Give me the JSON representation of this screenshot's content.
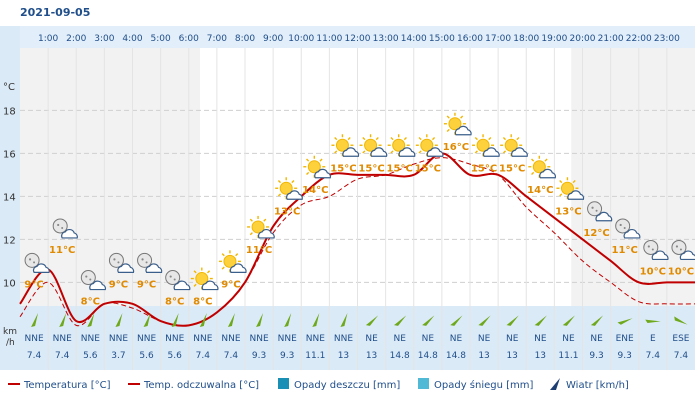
{
  "date": "2021-09-05",
  "wind_unit": [
    "km",
    "/h"
  ],
  "chart_data": {
    "type": "line",
    "x": [
      "1:00",
      "2:00",
      "3:00",
      "4:00",
      "5:00",
      "6:00",
      "7:00",
      "8:00",
      "9:00",
      "10:00",
      "11:00",
      "12:00",
      "13:00",
      "14:00",
      "15:00",
      "16:00",
      "17:00",
      "18:00",
      "19:00",
      "20:00",
      "21:00",
      "22:00",
      "23:00"
    ],
    "y_unit": "°C",
    "y_ticks": [
      10,
      12,
      14,
      16,
      18
    ],
    "ylim": [
      8.9,
      20.9
    ],
    "grid": true,
    "series": [
      {
        "name": "Temperatura [°C]",
        "style": "solid",
        "color": "#c00000",
        "values": [
          10.6,
          8.2,
          9.0,
          9.0,
          8.2,
          8.0,
          8.6,
          10.0,
          12.6,
          14.0,
          15.0,
          15.0,
          15.0,
          15.0,
          16.0,
          15.0,
          15.0,
          14.0,
          13.0,
          12.0,
          11.0,
          10.0,
          10.0
        ]
      },
      {
        "name": "Temp. odczuwalna [°C]",
        "style": "dashed",
        "color": "#c00000",
        "values": [
          10.0,
          8.0,
          9.0,
          8.8,
          8.2,
          8.0,
          8.6,
          10.0,
          12.3,
          13.6,
          14.0,
          14.8,
          15.0,
          15.5,
          15.8,
          15.5,
          15.0,
          13.5,
          12.3,
          11.0,
          10.0,
          9.1,
          9.0
        ]
      }
    ],
    "temp_labels": [
      "9°C",
      "11°C",
      "8°C",
      "9°C",
      "9°C",
      "8°C",
      "8°C",
      "9°C",
      "11°C",
      "13°C",
      "14°C",
      "15°C",
      "15°C",
      "15°C",
      "15°C",
      "16°C",
      "15°C",
      "15°C",
      "14°C",
      "13°C",
      "12°C",
      "11°C",
      "10°C",
      "10°C"
    ],
    "label_values": [
      10,
      11.6,
      9.2,
      10,
      10,
      9.2,
      9.2,
      10,
      11.6,
      13.4,
      14.4,
      15.4,
      15.4,
      15.4,
      15.4,
      16.4,
      15.4,
      15.4,
      14.4,
      13.4,
      12.4,
      11.6,
      10.6,
      10.6
    ],
    "weather_icons": [
      "night-partly-cloudy-icon",
      "night-partly-cloudy-icon",
      "night-partly-cloudy-icon",
      "night-partly-cloudy-icon",
      "night-partly-cloudy-icon",
      "night-partly-cloudy-icon",
      "partly-sunny-icon",
      "partly-sunny-icon",
      "partly-sunny-icon",
      "partly-sunny-icon",
      "partly-sunny-icon",
      "partly-sunny-icon",
      "partly-sunny-icon",
      "partly-sunny-icon",
      "partly-sunny-icon",
      "partly-sunny-icon",
      "partly-sunny-icon",
      "partly-sunny-icon",
      "partly-sunny-icon",
      "partly-sunny-icon",
      "night-partly-cloudy-icon",
      "night-partly-cloudy-icon",
      "night-partly-cloudy-icon",
      "night-partly-cloudy-icon"
    ],
    "wind_dirs": [
      "NNE",
      "NNE",
      "NNE",
      "NNE",
      "NNE",
      "NNE",
      "NNE",
      "NNE",
      "NNE",
      "NNE",
      "NNE",
      "NNE",
      "NE",
      "NE",
      "NE",
      "NE",
      "NE",
      "NE",
      "NE",
      "NE",
      "NE",
      "ENE",
      "E",
      "ESE"
    ],
    "wind_speeds": [
      "7.4",
      "7.4",
      "5.6",
      "3.7",
      "5.6",
      "5.6",
      "7.4",
      "7.4",
      "9.3",
      "9.3",
      "11.1",
      "13",
      "13",
      "14.8",
      "14.8",
      "14.8",
      "13",
      "13",
      "13",
      "11.1",
      "9.3",
      "9.3",
      "7.4",
      "7.4"
    ],
    "wind_angles": [
      20,
      20,
      20,
      20,
      20,
      20,
      20,
      20,
      20,
      20,
      20,
      20,
      45,
      45,
      45,
      45,
      45,
      45,
      45,
      45,
      45,
      68,
      90,
      115
    ],
    "legend": [
      {
        "label": "Temperatura [°C]",
        "swatch": "line"
      },
      {
        "label": "Temp. odczuwalna [°C]",
        "swatch": "line"
      },
      {
        "label": "Opady deszczu [mm]",
        "swatch": "box",
        "color": "#1a8fb5"
      },
      {
        "label": "Opady śniegu [mm]",
        "swatch": "box",
        "color": "#4fb9d6"
      },
      {
        "label": "Wiatr [km/h]",
        "swatch": "arrow",
        "color": "#1f3f73"
      }
    ],
    "colors": {
      "header": "#e2eef9",
      "panel": "#dbeaf7",
      "night": "#f2f2f2",
      "grid": "#cfcfcf",
      "label": "#e08a00",
      "wind_arrow": "#6ea81b"
    }
  }
}
